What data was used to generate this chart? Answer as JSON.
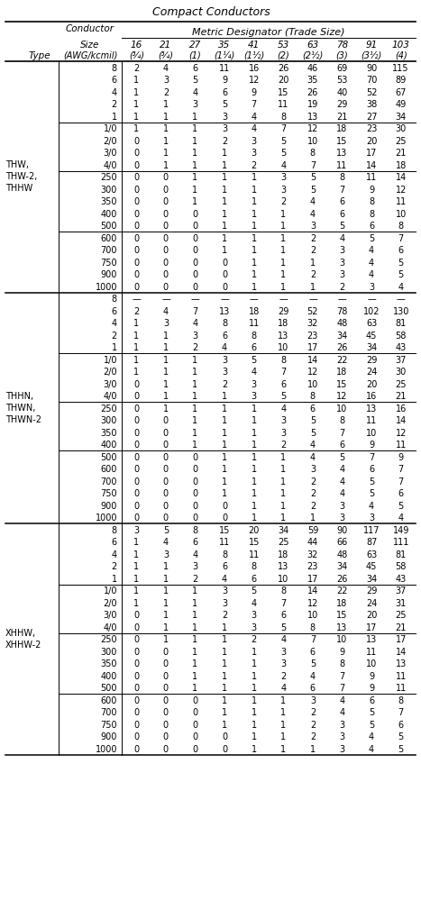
{
  "title": "Compact Conductors",
  "subtitle": "Metric Designator (Trade Size)",
  "col_headers_row1": [
    "16",
    "21",
    "27",
    "35",
    "41",
    "53",
    "63",
    "78",
    "91",
    "103"
  ],
  "col_headers_row2": [
    "¾",
    "¾",
    "1",
    "1¼",
    "1½",
    "2",
    "2½",
    "3",
    "3½",
    "4"
  ],
  "sections": [
    {
      "type_lines": [
        "THW,",
        "THW-2,",
        "THHW"
      ],
      "groups": [
        {
          "rows": [
            {
              "size": "8",
              "values": [
                "2",
                "4",
                "6",
                "11",
                "16",
                "26",
                "46",
                "69",
                "90",
                "115"
              ]
            },
            {
              "size": "6",
              "values": [
                "1",
                "3",
                "5",
                "9",
                "12",
                "20",
                "35",
                "53",
                "70",
                "89"
              ]
            },
            {
              "size": "4",
              "values": [
                "1",
                "2",
                "4",
                "6",
                "9",
                "15",
                "26",
                "40",
                "52",
                "67"
              ]
            },
            {
              "size": "2",
              "values": [
                "1",
                "1",
                "3",
                "5",
                "7",
                "11",
                "19",
                "29",
                "38",
                "49"
              ]
            },
            {
              "size": "1",
              "values": [
                "1",
                "1",
                "1",
                "3",
                "4",
                "8",
                "13",
                "21",
                "27",
                "34"
              ]
            }
          ]
        },
        {
          "rows": [
            {
              "size": "1/0",
              "values": [
                "1",
                "1",
                "1",
                "3",
                "4",
                "7",
                "12",
                "18",
                "23",
                "30"
              ]
            },
            {
              "size": "2/0",
              "values": [
                "0",
                "1",
                "1",
                "2",
                "3",
                "5",
                "10",
                "15",
                "20",
                "25"
              ]
            },
            {
              "size": "3/0",
              "values": [
                "0",
                "1",
                "1",
                "1",
                "3",
                "5",
                "8",
                "13",
                "17",
                "21"
              ]
            },
            {
              "size": "4/0",
              "values": [
                "0",
                "1",
                "1",
                "1",
                "2",
                "4",
                "7",
                "11",
                "14",
                "18"
              ]
            }
          ]
        },
        {
          "rows": [
            {
              "size": "250",
              "values": [
                "0",
                "0",
                "1",
                "1",
                "1",
                "3",
                "5",
                "8",
                "11",
                "14"
              ]
            },
            {
              "size": "300",
              "values": [
                "0",
                "0",
                "1",
                "1",
                "1",
                "3",
                "5",
                "7",
                "9",
                "12"
              ]
            },
            {
              "size": "350",
              "values": [
                "0",
                "0",
                "1",
                "1",
                "1",
                "2",
                "4",
                "6",
                "8",
                "11"
              ]
            },
            {
              "size": "400",
              "values": [
                "0",
                "0",
                "0",
                "1",
                "1",
                "1",
                "4",
                "6",
                "8",
                "10"
              ]
            },
            {
              "size": "500",
              "values": [
                "0",
                "0",
                "0",
                "1",
                "1",
                "1",
                "3",
                "5",
                "6",
                "8"
              ]
            }
          ]
        },
        {
          "rows": [
            {
              "size": "600",
              "values": [
                "0",
                "0",
                "0",
                "1",
                "1",
                "1",
                "2",
                "4",
                "5",
                "7"
              ]
            },
            {
              "size": "700",
              "values": [
                "0",
                "0",
                "0",
                "1",
                "1",
                "1",
                "2",
                "3",
                "4",
                "6"
              ]
            },
            {
              "size": "750",
              "values": [
                "0",
                "0",
                "0",
                "0",
                "1",
                "1",
                "1",
                "3",
                "4",
                "5"
              ]
            },
            {
              "size": "900",
              "values": [
                "0",
                "0",
                "0",
                "0",
                "1",
                "1",
                "2",
                "3",
                "4",
                "5"
              ]
            },
            {
              "size": "1000",
              "values": [
                "0",
                "0",
                "0",
                "0",
                "1",
                "1",
                "1",
                "2",
                "3",
                "4"
              ]
            }
          ]
        }
      ]
    },
    {
      "type_lines": [
        "THHN,",
        "THWN,",
        "THWN-2"
      ],
      "groups": [
        {
          "rows": [
            {
              "size": "8",
              "values": [
                "—",
                "—",
                "—",
                "—",
                "—",
                "—",
                "—",
                "—",
                "—",
                "—"
              ]
            },
            {
              "size": "6",
              "values": [
                "2",
                "4",
                "7",
                "13",
                "18",
                "29",
                "52",
                "78",
                "102",
                "130"
              ]
            },
            {
              "size": "4",
              "values": [
                "1",
                "3",
                "4",
                "8",
                "11",
                "18",
                "32",
                "48",
                "63",
                "81"
              ]
            },
            {
              "size": "2",
              "values": [
                "1",
                "1",
                "3",
                "6",
                "8",
                "13",
                "23",
                "34",
                "45",
                "58"
              ]
            },
            {
              "size": "1",
              "values": [
                "1",
                "1",
                "2",
                "4",
                "6",
                "10",
                "17",
                "26",
                "34",
                "43"
              ]
            }
          ]
        },
        {
          "rows": [
            {
              "size": "1/0",
              "values": [
                "1",
                "1",
                "1",
                "3",
                "5",
                "8",
                "14",
                "22",
                "29",
                "37"
              ]
            },
            {
              "size": "2/0",
              "values": [
                "1",
                "1",
                "1",
                "3",
                "4",
                "7",
                "12",
                "18",
                "24",
                "30"
              ]
            },
            {
              "size": "3/0",
              "values": [
                "0",
                "1",
                "1",
                "2",
                "3",
                "6",
                "10",
                "15",
                "20",
                "25"
              ]
            },
            {
              "size": "4/0",
              "values": [
                "0",
                "1",
                "1",
                "1",
                "3",
                "5",
                "8",
                "12",
                "16",
                "21"
              ]
            }
          ]
        },
        {
          "rows": [
            {
              "size": "250",
              "values": [
                "0",
                "1",
                "1",
                "1",
                "1",
                "4",
                "6",
                "10",
                "13",
                "16"
              ]
            },
            {
              "size": "300",
              "values": [
                "0",
                "0",
                "1",
                "1",
                "1",
                "3",
                "5",
                "8",
                "11",
                "14"
              ]
            },
            {
              "size": "350",
              "values": [
                "0",
                "0",
                "1",
                "1",
                "1",
                "3",
                "5",
                "7",
                "10",
                "12"
              ]
            },
            {
              "size": "400",
              "values": [
                "0",
                "0",
                "1",
                "1",
                "1",
                "2",
                "4",
                "6",
                "9",
                "11"
              ]
            }
          ]
        },
        {
          "rows": [
            {
              "size": "500",
              "values": [
                "0",
                "0",
                "0",
                "1",
                "1",
                "1",
                "4",
                "5",
                "7",
                "9"
              ]
            },
            {
              "size": "600",
              "values": [
                "0",
                "0",
                "0",
                "1",
                "1",
                "1",
                "3",
                "4",
                "6",
                "7"
              ]
            },
            {
              "size": "700",
              "values": [
                "0",
                "0",
                "0",
                "1",
                "1",
                "1",
                "2",
                "4",
                "5",
                "7"
              ]
            },
            {
              "size": "750",
              "values": [
                "0",
                "0",
                "0",
                "1",
                "1",
                "1",
                "2",
                "4",
                "5",
                "6"
              ]
            },
            {
              "size": "900",
              "values": [
                "0",
                "0",
                "0",
                "0",
                "1",
                "1",
                "2",
                "3",
                "4",
                "5"
              ]
            },
            {
              "size": "1000",
              "values": [
                "0",
                "0",
                "0",
                "0",
                "1",
                "1",
                "1",
                "3",
                "3",
                "4"
              ]
            }
          ]
        }
      ]
    },
    {
      "type_lines": [
        "XHHW,",
        "XHHW-2"
      ],
      "groups": [
        {
          "rows": [
            {
              "size": "8",
              "values": [
                "3",
                "5",
                "8",
                "15",
                "20",
                "34",
                "59",
                "90",
                "117",
                "149"
              ]
            },
            {
              "size": "6",
              "values": [
                "1",
                "4",
                "6",
                "11",
                "15",
                "25",
                "44",
                "66",
                "87",
                "111"
              ]
            },
            {
              "size": "4",
              "values": [
                "1",
                "3",
                "4",
                "8",
                "11",
                "18",
                "32",
                "48",
                "63",
                "81"
              ]
            },
            {
              "size": "2",
              "values": [
                "1",
                "1",
                "3",
                "6",
                "8",
                "13",
                "23",
                "34",
                "45",
                "58"
              ]
            },
            {
              "size": "1",
              "values": [
                "1",
                "1",
                "2",
                "4",
                "6",
                "10",
                "17",
                "26",
                "34",
                "43"
              ]
            }
          ]
        },
        {
          "rows": [
            {
              "size": "1/0",
              "values": [
                "1",
                "1",
                "1",
                "3",
                "5",
                "8",
                "14",
                "22",
                "29",
                "37"
              ]
            },
            {
              "size": "2/0",
              "values": [
                "1",
                "1",
                "1",
                "3",
                "4",
                "7",
                "12",
                "18",
                "24",
                "31"
              ]
            },
            {
              "size": "3/0",
              "values": [
                "0",
                "1",
                "1",
                "2",
                "3",
                "6",
                "10",
                "15",
                "20",
                "25"
              ]
            },
            {
              "size": "4/0",
              "values": [
                "0",
                "1",
                "1",
                "1",
                "3",
                "5",
                "8",
                "13",
                "17",
                "21"
              ]
            }
          ]
        },
        {
          "rows": [
            {
              "size": "250",
              "values": [
                "0",
                "1",
                "1",
                "1",
                "2",
                "4",
                "7",
                "10",
                "13",
                "17"
              ]
            },
            {
              "size": "300",
              "values": [
                "0",
                "0",
                "1",
                "1",
                "1",
                "3",
                "6",
                "9",
                "11",
                "14"
              ]
            },
            {
              "size": "350",
              "values": [
                "0",
                "0",
                "1",
                "1",
                "1",
                "3",
                "5",
                "8",
                "10",
                "13"
              ]
            },
            {
              "size": "400",
              "values": [
                "0",
                "0",
                "1",
                "1",
                "1",
                "2",
                "4",
                "7",
                "9",
                "11"
              ]
            },
            {
              "size": "500",
              "values": [
                "0",
                "0",
                "1",
                "1",
                "1",
                "4",
                "6",
                "7",
                "9",
                "11"
              ]
            }
          ]
        },
        {
          "rows": [
            {
              "size": "600",
              "values": [
                "0",
                "0",
                "0",
                "1",
                "1",
                "1",
                "3",
                "4",
                "6",
                "8"
              ]
            },
            {
              "size": "700",
              "values": [
                "0",
                "0",
                "0",
                "1",
                "1",
                "1",
                "2",
                "4",
                "5",
                "7"
              ]
            },
            {
              "size": "750",
              "values": [
                "0",
                "0",
                "0",
                "1",
                "1",
                "1",
                "2",
                "3",
                "5",
                "6"
              ]
            },
            {
              "size": "900",
              "values": [
                "0",
                "0",
                "0",
                "0",
                "1",
                "1",
                "2",
                "3",
                "4",
                "5"
              ]
            },
            {
              "size": "1000",
              "values": [
                "0",
                "0",
                "0",
                "0",
                "1",
                "1",
                "1",
                "3",
                "4",
                "5"
              ]
            }
          ]
        }
      ]
    }
  ]
}
